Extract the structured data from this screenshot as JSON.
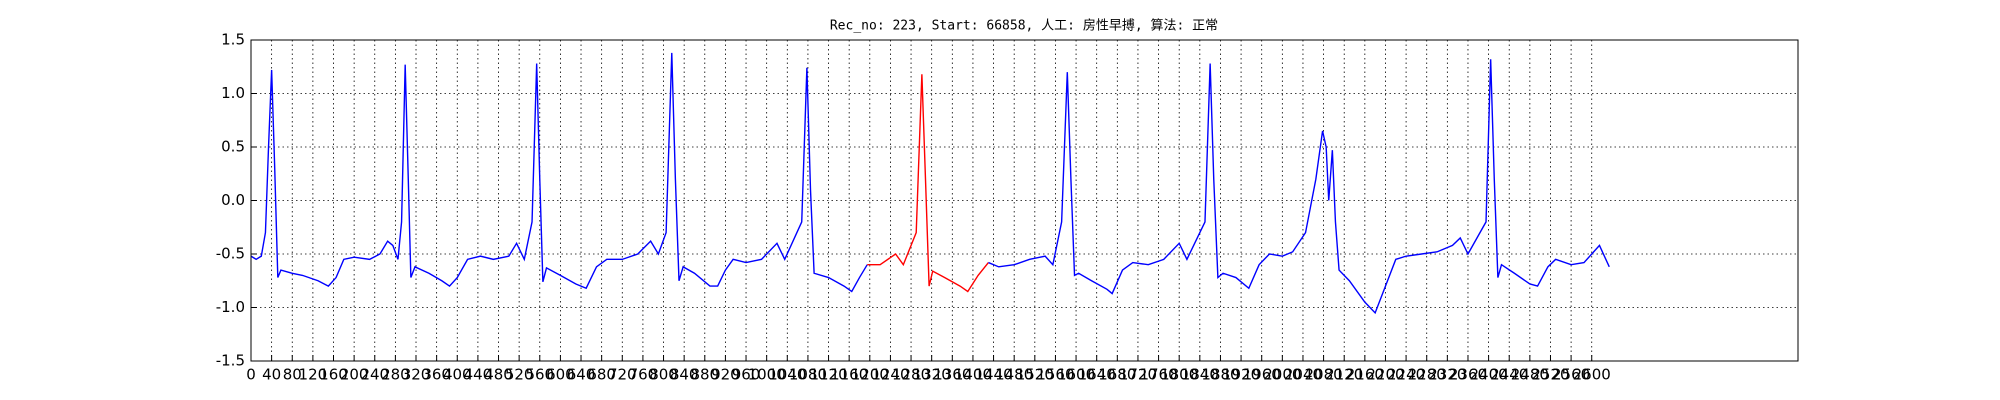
{
  "chart_data": {
    "type": "line",
    "title": "Rec_no: 223, Start: 66858, 人工: 房性早搏, 算法: 正常",
    "xlim": [
      0,
      3000
    ],
    "ylim": [
      -1.5,
      1.5
    ],
    "grid": true,
    "xticks": [
      0,
      40,
      80,
      120,
      160,
      200,
      240,
      280,
      320,
      360,
      400,
      440,
      480,
      520,
      560,
      600,
      640,
      680,
      720,
      760,
      800,
      840,
      880,
      920,
      960,
      1000,
      1040,
      1080,
      1120,
      1160,
      1200,
      1240,
      1280,
      1320,
      1360,
      1400,
      1440,
      1480,
      1520,
      1560,
      1600,
      1640,
      1680,
      1720,
      1760,
      1800,
      1840,
      1880,
      1920,
      1960,
      2000,
      2040,
      2080,
      2120,
      2160,
      2200,
      2240,
      2280,
      2320,
      2360,
      2400,
      2440,
      2480,
      2520,
      2560,
      2600
    ],
    "yticks": [
      {
        "value": -1.5,
        "label": "-1.5"
      },
      {
        "value": -1,
        "label": "-1.0"
      },
      {
        "value": -0.5,
        "label": "-0.5"
      },
      {
        "value": 0,
        "label": "0.0"
      },
      0.5,
      {
        "value": 1,
        "label": "1.0"
      },
      1.5
    ],
    "series": [
      {
        "color": "#0000ff",
        "x": [
          0,
          10,
          20,
          28,
          34,
          40,
          46,
          52,
          58,
          80,
          100,
          130,
          150,
          165,
          180,
          200,
          230,
          250,
          265,
          275,
          285,
          292,
          299,
          305,
          310,
          318,
          345,
          370,
          385,
          400,
          420,
          445,
          470,
          500,
          515,
          530,
          545,
          554,
          560,
          566,
          573,
          600,
          630,
          650,
          670,
          690,
          720,
          750,
          775,
          790,
          805,
          816,
          823,
          830,
          838,
          860,
          890,
          905,
          920,
          935,
          960,
          990,
          1020,
          1035,
          1068,
          1078,
          1085,
          1092,
          1120,
          1150,
          1165,
          1180,
          1195
        ],
        "values": [
          -0.52,
          -0.55,
          -0.52,
          -0.3,
          0.5,
          1.22,
          0.3,
          -0.72,
          -0.65,
          -0.68,
          -0.7,
          -0.75,
          -0.8,
          -0.72,
          -0.55,
          -0.53,
          -0.55,
          -0.5,
          -0.38,
          -0.42,
          -0.55,
          -0.2,
          1.27,
          0.2,
          -0.72,
          -0.62,
          -0.68,
          -0.75,
          -0.8,
          -0.72,
          -0.55,
          -0.52,
          -0.55,
          -0.52,
          -0.4,
          -0.55,
          -0.2,
          1.28,
          0.2,
          -0.76,
          -0.63,
          -0.7,
          -0.78,
          -0.82,
          -0.62,
          -0.55,
          -0.55,
          -0.5,
          -0.38,
          -0.5,
          -0.3,
          1.38,
          0.2,
          -0.75,
          -0.62,
          -0.68,
          -0.8,
          -0.8,
          -0.65,
          -0.55,
          -0.58,
          -0.55,
          -0.4,
          -0.55,
          -0.2,
          1.24,
          0.1,
          -0.68,
          -0.72,
          -0.8,
          -0.85,
          -0.72,
          -0.6
        ]
      },
      {
        "color": "#ff0000",
        "x": [
          1195,
          1220,
          1250,
          1265,
          1290,
          1301,
          1308,
          1315,
          1322,
          1345,
          1375,
          1390,
          1410,
          1430
        ],
        "values": [
          -0.6,
          -0.6,
          -0.5,
          -0.6,
          -0.3,
          1.18,
          0.2,
          -0.8,
          -0.66,
          -0.72,
          -0.8,
          -0.85,
          -0.7,
          -0.58
        ]
      },
      {
        "color": "#0000ff",
        "x": [
          1430,
          1450,
          1480,
          1510,
          1540,
          1555,
          1572,
          1583,
          1590,
          1597,
          1605,
          1630,
          1660,
          1670,
          1690,
          1710,
          1740,
          1770,
          1800,
          1815,
          1850,
          1860,
          1867,
          1875,
          1885,
          1910,
          1935,
          1955,
          1975,
          2000,
          2020,
          2045,
          2065,
          2078,
          2085,
          2090,
          2097,
          2103,
          2110,
          2130,
          2160,
          2180,
          2200,
          2220,
          2240,
          2270,
          2300,
          2330,
          2345,
          2360,
          2395,
          2404,
          2411,
          2418,
          2425,
          2450,
          2480,
          2495,
          2515,
          2530,
          2560,
          2585,
          2600,
          2615,
          2634
        ],
        "values": [
          -0.58,
          -0.62,
          -0.6,
          -0.55,
          -0.52,
          -0.6,
          -0.2,
          1.2,
          0.2,
          -0.7,
          -0.68,
          -0.75,
          -0.83,
          -0.87,
          -0.65,
          -0.58,
          -0.6,
          -0.55,
          -0.4,
          -0.55,
          -0.2,
          1.28,
          0.2,
          -0.72,
          -0.68,
          -0.72,
          -0.82,
          -0.6,
          -0.5,
          -0.52,
          -0.48,
          -0.3,
          0.2,
          0.65,
          0.5,
          0.0,
          0.47,
          -0.2,
          -0.65,
          -0.75,
          -0.95,
          -1.05,
          -0.8,
          -0.55,
          -0.52,
          -0.5,
          -0.48,
          -0.42,
          -0.35,
          -0.5,
          -0.2,
          1.32,
          0.2,
          -0.72,
          -0.6,
          -0.68,
          -0.78,
          -0.8,
          -0.62,
          -0.55,
          -0.6,
          -0.58,
          -0.5,
          -0.42,
          -0.62
        ]
      }
    ]
  }
}
